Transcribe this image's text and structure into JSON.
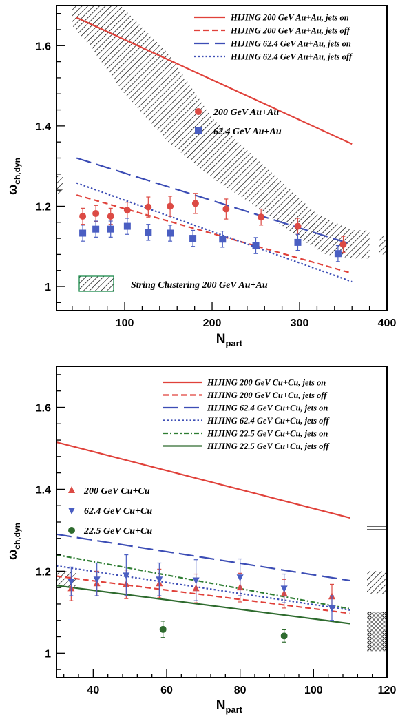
{
  "chart_data": [
    {
      "type": "line",
      "xlabel": "N",
      "xlabel_sub": "part",
      "ylabel": "ω",
      "ylabel_sub": "ch,dyn",
      "xlim": [
        22,
        400
      ],
      "ylim": [
        0.94,
        1.7
      ],
      "xticks": [
        100,
        200,
        300,
        400
      ],
      "yticks": [
        1,
        1.2,
        1.4,
        1.6
      ],
      "xtick_labels": [
        "100",
        "200",
        "300",
        "400"
      ],
      "ytick_labels": [
        "1",
        "1.2",
        "1.4",
        "1.6"
      ],
      "lines": [
        {
          "name": "HIJING 200 GeV Au+Au, jets on",
          "style": "solid",
          "color": "#e0413a",
          "x": [
            45,
            360
          ],
          "y": [
            1.67,
            1.355
          ]
        },
        {
          "name": "HIJING 200 GeV Au+Au, jets off",
          "style": "dashed",
          "color": "#e0413a",
          "x": [
            45,
            360
          ],
          "y": [
            1.228,
            1.033
          ]
        },
        {
          "name": "HIJING 62.4 GeV Au+Au, jets on",
          "style": "longdash",
          "color": "#3c4db5",
          "x": [
            45,
            360
          ],
          "y": [
            1.32,
            1.105
          ]
        },
        {
          "name": "HIJING 62.4 GeV Au+Au, jets off",
          "style": "dotted",
          "color": "#3c4db5",
          "x": [
            45,
            360
          ],
          "y": [
            1.258,
            1.012
          ]
        }
      ],
      "markers": [
        {
          "name": "200 GeV Au+Au",
          "shape": "circle",
          "color": "#dc4a44",
          "x": [
            52,
            67,
            84,
            103,
            127,
            152,
            181,
            216,
            256,
            298,
            350
          ],
          "y": [
            1.175,
            1.182,
            1.175,
            1.19,
            1.198,
            1.2,
            1.207,
            1.193,
            1.173,
            1.15,
            1.105
          ],
          "err": [
            0.02,
            0.02,
            0.02,
            0.02,
            0.025,
            0.025,
            0.025,
            0.025,
            0.02,
            0.02,
            0.02
          ]
        },
        {
          "name": "62.4 GeV Au+Au",
          "shape": "square",
          "color": "#4a5ec2",
          "x": [
            52,
            67,
            84,
            103,
            127,
            152,
            178,
            212,
            250,
            298,
            344
          ],
          "y": [
            1.133,
            1.143,
            1.143,
            1.15,
            1.135,
            1.133,
            1.12,
            1.118,
            1.102,
            1.11,
            1.082
          ],
          "err": [
            0.02,
            0.02,
            0.02,
            0.02,
            0.02,
            0.02,
            0.02,
            0.02,
            0.02,
            0.02,
            0.02
          ]
        }
      ],
      "band": {
        "name": "String Clustering 200 GeV Au+Au",
        "upper": [
          [
            40,
            1.7
          ],
          [
            95,
            1.7
          ],
          [
            150,
            1.58
          ],
          [
            200,
            1.42
          ],
          [
            260,
            1.3
          ],
          [
            320,
            1.18
          ],
          [
            360,
            1.14
          ],
          [
            380,
            1.14
          ]
        ],
        "lower": [
          [
            380,
            1.07
          ],
          [
            360,
            1.07
          ],
          [
            330,
            1.08
          ],
          [
            300,
            1.12
          ],
          [
            250,
            1.2
          ],
          [
            200,
            1.27
          ],
          [
            150,
            1.36
          ],
          [
            100,
            1.48
          ],
          [
            60,
            1.6
          ],
          [
            40,
            1.65
          ]
        ]
      },
      "side_markers": [
        {
          "kind": "hatch",
          "side": "left",
          "y": [
            1.23,
            1.275
          ]
        },
        {
          "kind": "hatch",
          "side": "right",
          "y": [
            1.08,
            1.125
          ]
        }
      ]
    },
    {
      "type": "line",
      "xlabel": "N",
      "xlabel_sub": "part",
      "ylabel": "ω",
      "ylabel_sub": "ch,dyn",
      "xlim": [
        30,
        120
      ],
      "ylim": [
        0.94,
        1.7
      ],
      "xticks": [
        40,
        60,
        80,
        100,
        120
      ],
      "yticks": [
        1,
        1.2,
        1.4,
        1.6
      ],
      "xtick_labels": [
        "40",
        "60",
        "80",
        "100",
        "120"
      ],
      "ytick_labels": [
        "1",
        "1.2",
        "1.4",
        "1.6"
      ],
      "lines": [
        {
          "name": "HIJING 200 GeV Cu+Cu, jets on",
          "style": "solid",
          "color": "#e0413a",
          "x": [
            30,
            110
          ],
          "y": [
            1.515,
            1.33
          ]
        },
        {
          "name": "HIJING 200 GeV Cu+Cu, jets off",
          "style": "dashed",
          "color": "#e0413a",
          "x": [
            30,
            110
          ],
          "y": [
            1.188,
            1.097
          ]
        },
        {
          "name": "HIJING 62.4 GeV Cu+Cu, jets on",
          "style": "longdash",
          "color": "#3c4db5",
          "x": [
            30,
            110
          ],
          "y": [
            1.29,
            1.177
          ]
        },
        {
          "name": "HIJING 62.4 GeV Cu+Cu, jets off",
          "style": "dotted",
          "color": "#3c4db5",
          "x": [
            30,
            110
          ],
          "y": [
            1.213,
            1.105
          ]
        },
        {
          "name": "HIJING 22.5 GeV Cu+Cu, jets on",
          "style": "dashdot",
          "color": "#2e7d32",
          "x": [
            30,
            110
          ],
          "y": [
            1.24,
            1.108
          ]
        },
        {
          "name": "HIJING 22.5 GeV Cu+Cu, jets off",
          "style": "solid",
          "color": "#2e6b2e",
          "x": [
            30,
            110
          ],
          "y": [
            1.165,
            1.072
          ]
        }
      ],
      "markers": [
        {
          "name": "200 GeV Cu+Cu",
          "shape": "triangle-up",
          "color": "#dc4a44",
          "x": [
            34,
            41,
            49,
            58,
            68,
            80,
            92,
            105
          ],
          "y": [
            1.158,
            1.17,
            1.168,
            1.17,
            1.158,
            1.16,
            1.145,
            1.138
          ],
          "err": [
            0.03,
            0.03,
            0.035,
            0.035,
            0.035,
            0.035,
            0.035,
            0.03
          ]
        },
        {
          "name": "62.4 GeV Cu+Cu",
          "shape": "triangle-down",
          "color": "#4a5ec2",
          "x": [
            34,
            41,
            49,
            58,
            68,
            80,
            92,
            105
          ],
          "y": [
            1.175,
            1.18,
            1.19,
            1.18,
            1.178,
            1.185,
            1.158,
            1.11
          ],
          "err": [
            0.035,
            0.04,
            0.05,
            0.04,
            0.05,
            0.045,
            0.035,
            0.03
          ]
        },
        {
          "name": "22.5 GeV Cu+Cu",
          "shape": "circle",
          "color": "#2e6b2e",
          "x": [
            59,
            92
          ],
          "y": [
            1.058,
            1.042
          ],
          "err": [
            0.02,
            0.015
          ]
        }
      ],
      "side_markers": [
        {
          "kind": "hatch",
          "side": "left",
          "y": [
            1.16,
            1.2
          ]
        },
        {
          "kind": "lines",
          "side": "right",
          "y": [
            1.3,
            1.31
          ]
        },
        {
          "kind": "hatch",
          "side": "right",
          "y": [
            1.145,
            1.2
          ]
        },
        {
          "kind": "circles",
          "side": "right",
          "y": [
            1.005,
            1.1
          ]
        }
      ]
    }
  ]
}
